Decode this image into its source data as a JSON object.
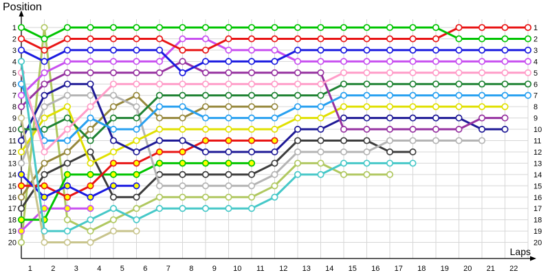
{
  "chart_data": {
    "type": "line",
    "title": "Position",
    "xlabel": "Laps",
    "x_tick_labels": [
      1,
      2,
      3,
      4,
      5,
      6,
      7,
      8,
      9,
      10,
      11,
      12,
      13,
      14,
      15,
      16,
      17,
      18,
      19,
      20,
      21,
      22
    ],
    "y_tick_labels_left": [
      1,
      2,
      3,
      4,
      5,
      6,
      7,
      8,
      9,
      10,
      11,
      12,
      13,
      14,
      15,
      16,
      17,
      18,
      19,
      20
    ],
    "y_tick_labels_right": [
      1,
      2,
      3,
      4,
      5,
      6,
      7,
      8,
      9,
      10,
      11,
      12,
      13,
      14,
      15,
      16,
      17,
      18,
      19,
      20
    ],
    "columns": 23,
    "ylim": [
      1,
      20
    ],
    "y_inverted": true,
    "grid": true,
    "legend": "none",
    "colors": {
      "background": "#ffffff",
      "gridline": "#d6d6d6",
      "axis": "#000000",
      "marker_fill_default": "#ffffff",
      "marker_fill_alt": "#ffff00"
    },
    "series": [
      {
        "name": "green",
        "color": "#00c400",
        "marker_fill": "#ffffff",
        "positions": [
          1,
          2,
          1,
          1,
          1,
          1,
          1,
          1,
          1,
          1,
          1,
          1,
          1,
          1,
          1,
          1,
          1,
          1,
          1,
          2,
          2,
          2,
          2
        ]
      },
      {
        "name": "red",
        "color": "#e81414",
        "marker_fill": "#ffffff",
        "positions": [
          2,
          3,
          2,
          2,
          2,
          2,
          2,
          3,
          3,
          2,
          2,
          2,
          2,
          2,
          2,
          2,
          2,
          2,
          2,
          1,
          1,
          1,
          1
        ]
      },
      {
        "name": "blue",
        "color": "#1a1ae0",
        "marker_fill": "#ffffff",
        "positions": [
          3,
          4,
          3,
          3,
          3,
          3,
          3,
          5,
          4,
          4,
          4,
          4,
          3,
          3,
          3,
          3,
          3,
          3,
          3,
          3,
          3,
          3,
          3
        ]
      },
      {
        "name": "cyan",
        "color": "#46c8c8",
        "marker_fill": "#ffffff",
        "positions": [
          4,
          19,
          19,
          18,
          17,
          18,
          17,
          17,
          17,
          17,
          17,
          16,
          14,
          14,
          13,
          13,
          13,
          13,
          null,
          null,
          null,
          null,
          null
        ]
      },
      {
        "name": "pink",
        "color": "#ff9cc8",
        "marker_fill": "#ffffff",
        "positions": [
          5,
          12,
          10,
          8,
          6,
          6,
          6,
          6,
          6,
          6,
          6,
          6,
          6,
          6,
          5,
          5,
          5,
          5,
          5,
          5,
          5,
          5,
          5
        ]
      },
      {
        "name": "lightblue",
        "color": "#28a0f0",
        "marker_fill": "#ffffff",
        "positions": [
          6,
          11,
          11,
          9,
          10,
          10,
          8,
          8,
          9,
          9,
          9,
          9,
          8,
          8,
          7,
          7,
          7,
          7,
          7,
          7,
          7,
          7,
          7
        ]
      },
      {
        "name": "magenta",
        "color": "#c850f0",
        "marker_fill": "#ffffff",
        "positions": [
          7,
          5,
          4,
          4,
          4,
          4,
          4,
          2,
          2,
          3,
          3,
          3,
          4,
          4,
          4,
          4,
          4,
          4,
          4,
          4,
          4,
          4,
          4
        ]
      },
      {
        "name": "purple",
        "color": "#9632a0",
        "marker_fill": "#ffffff",
        "positions": [
          8,
          6,
          5,
          5,
          5,
          5,
          5,
          4,
          5,
          5,
          5,
          5,
          5,
          5,
          10,
          10,
          10,
          10,
          10,
          10,
          9,
          9,
          null
        ]
      },
      {
        "name": "palekhaki",
        "color": "#c8c48c",
        "marker_fill": "#ffffff",
        "positions": [
          9,
          20,
          20,
          20,
          19,
          19,
          null,
          null,
          null,
          null,
          null,
          null,
          null,
          null,
          null,
          null,
          null,
          null,
          null,
          null,
          null,
          null,
          null
        ]
      },
      {
        "name": "darkgreen",
        "color": "#1e8232",
        "marker_fill": "#ffffff",
        "positions": [
          10,
          10,
          9,
          11,
          9,
          9,
          7,
          7,
          7,
          7,
          7,
          7,
          7,
          7,
          6,
          6,
          6,
          6,
          6,
          6,
          6,
          6,
          6
        ]
      },
      {
        "name": "navy",
        "color": "#1e1996",
        "marker_fill": "#ffffff",
        "positions": [
          11,
          7,
          6,
          6,
          11,
          12,
          11,
          11,
          12,
          12,
          12,
          12,
          10,
          10,
          9,
          9,
          9,
          9,
          9,
          9,
          10,
          10,
          null
        ]
      },
      {
        "name": "yellow",
        "color": "#e0e000",
        "marker_fill": "#ffffff",
        "positions": [
          12,
          9,
          8,
          13,
          12,
          11,
          10,
          10,
          10,
          10,
          10,
          10,
          9,
          9,
          8,
          8,
          8,
          8,
          8,
          8,
          8,
          8,
          null
        ]
      },
      {
        "name": "gray",
        "color": "#b4b4b4",
        "marker_fill": "#ffffff",
        "positions": [
          13,
          8,
          7,
          7,
          7,
          8,
          15,
          15,
          15,
          15,
          15,
          14,
          12,
          12,
          12,
          12,
          11,
          11,
          11,
          11,
          11,
          null,
          null
        ]
      },
      {
        "name": "blue-yellow",
        "color": "#1a1ae0",
        "marker_fill": "#ffff00",
        "positions": [
          14,
          16,
          15,
          16,
          15,
          15,
          null,
          null,
          null,
          null,
          null,
          null,
          null,
          null,
          null,
          null,
          null,
          null,
          null,
          null,
          null,
          null,
          null
        ]
      },
      {
        "name": "red-yellow",
        "color": "#e81414",
        "marker_fill": "#ffff00",
        "positions": [
          15,
          15,
          16,
          15,
          13,
          13,
          12,
          12,
          11,
          11,
          11,
          11,
          null,
          null,
          null,
          null,
          null,
          null,
          null,
          null,
          null,
          null,
          null
        ]
      },
      {
        "name": "olive",
        "color": "#96883c",
        "marker_fill": "#ffffff",
        "positions": [
          16,
          13,
          12,
          10,
          8,
          7,
          9,
          9,
          8,
          8,
          8,
          8,
          null,
          null,
          null,
          null,
          null,
          null,
          null,
          null,
          null,
          null,
          null
        ]
      },
      {
        "name": "darkgray",
        "color": "#3c3c3c",
        "marker_fill": "#ffffff",
        "positions": [
          17,
          14,
          13,
          12,
          16,
          16,
          14,
          14,
          14,
          14,
          14,
          13,
          11,
          11,
          11,
          11,
          12,
          12,
          null,
          null,
          null,
          null,
          null
        ]
      },
      {
        "name": "green-yellow",
        "color": "#00c400",
        "marker_fill": "#ffff00",
        "positions": [
          18,
          18,
          14,
          14,
          14,
          14,
          13,
          13,
          13,
          13,
          13,
          null,
          null,
          null,
          null,
          null,
          null,
          null,
          null,
          null,
          null,
          null,
          null
        ]
      },
      {
        "name": "magenta-yellow",
        "color": "#c850f0",
        "marker_fill": "#ffff00",
        "positions": [
          19,
          17,
          17,
          17,
          null,
          null,
          null,
          null,
          null,
          null,
          null,
          null,
          null,
          null,
          null,
          null,
          null,
          null,
          null,
          null,
          null,
          null,
          null
        ]
      },
      {
        "name": "palegreen",
        "color": "#b0c860",
        "marker_fill": "#ffffff",
        "positions": [
          20,
          1,
          18,
          19,
          18,
          17,
          16,
          16,
          16,
          16,
          16,
          15,
          13,
          13,
          14,
          14,
          14,
          null,
          null,
          null,
          null,
          null,
          null
        ]
      }
    ]
  }
}
